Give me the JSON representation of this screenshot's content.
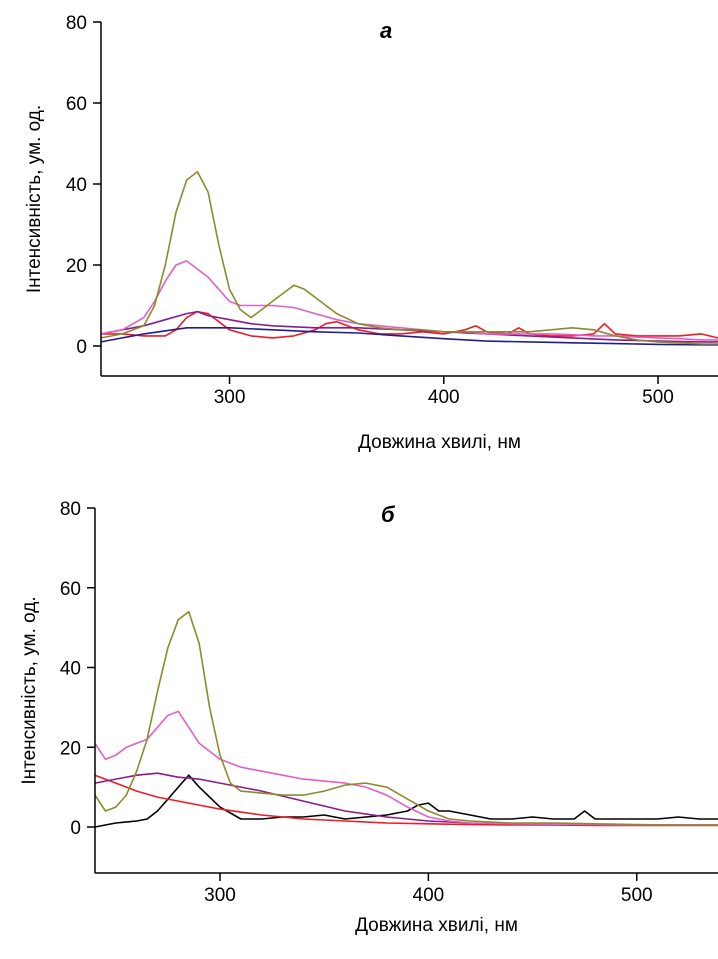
{
  "colors": {
    "olive": "#8B8B2E",
    "pink": "#E060C8",
    "purple": "#8A1C8A",
    "navy": "#1F1F8C",
    "red": "#EE1C24",
    "black": "#000000"
  },
  "chart_data": [
    {
      "type": "line",
      "panel_label": "а",
      "title": "",
      "xlabel": "Довжина хвилі, нм",
      "ylabel": "Інтенсивність, ум. од.",
      "xlim": [
        240,
        528
      ],
      "ylim": [
        -7,
        80
      ],
      "xticks": [
        300,
        400,
        500
      ],
      "yticks": [
        0,
        20,
        40,
        60,
        80
      ],
      "grid": false,
      "series": [
        {
          "color": "olive",
          "x": [
            240,
            250,
            260,
            265,
            270,
            275,
            280,
            285,
            290,
            295,
            300,
            305,
            310,
            315,
            320,
            325,
            330,
            335,
            340,
            345,
            350,
            360,
            370,
            380,
            390,
            400,
            410,
            420,
            430,
            440,
            450,
            460,
            470,
            480,
            490,
            500,
            510,
            520,
            528
          ],
          "y": [
            2,
            3,
            5,
            10,
            20,
            33,
            41,
            43,
            38,
            25,
            14,
            9,
            7,
            9,
            11,
            13,
            15,
            14,
            12,
            10,
            8,
            5.5,
            4.5,
            4,
            4,
            3.5,
            3.5,
            3.5,
            3.5,
            3.5,
            4,
            4.5,
            4,
            2.5,
            1.5,
            1,
            0.8,
            0.5,
            0.5
          ]
        },
        {
          "color": "pink",
          "x": [
            240,
            250,
            260,
            265,
            270,
            275,
            280,
            285,
            290,
            295,
            300,
            305,
            310,
            320,
            330,
            340,
            350,
            360,
            370,
            380,
            390,
            400,
            410,
            420,
            430,
            440,
            450,
            460,
            470,
            480,
            490,
            500,
            510,
            520,
            528
          ],
          "y": [
            3,
            4,
            7,
            11,
            16,
            20,
            21,
            19,
            17,
            14,
            11,
            10,
            10,
            10,
            9.5,
            8,
            6.5,
            5.5,
            5,
            4.5,
            4,
            3.5,
            3.5,
            3,
            3,
            3,
            3,
            2.8,
            2.5,
            2.5,
            2.2,
            2,
            1.8,
            1.5,
            1.5
          ]
        },
        {
          "color": "purple",
          "x": [
            240,
            250,
            260,
            270,
            280,
            285,
            290,
            300,
            310,
            320,
            340,
            360,
            380,
            400,
            420,
            440,
            460,
            480,
            500,
            520,
            528
          ],
          "y": [
            3,
            4,
            5,
            6.5,
            8,
            8.5,
            7.5,
            6.5,
            5.5,
            5,
            4.5,
            4.5,
            4,
            3.5,
            3,
            2.5,
            2,
            1.5,
            1.2,
            1,
            1
          ]
        },
        {
          "color": "navy",
          "x": [
            240,
            260,
            280,
            300,
            320,
            340,
            360,
            380,
            400,
            420,
            440,
            460,
            480,
            500,
            520,
            528
          ],
          "y": [
            1,
            3,
            4.5,
            4.5,
            4,
            3.5,
            3.2,
            2.5,
            1.8,
            1.2,
            1,
            0.8,
            0.6,
            0.4,
            0.3,
            0.3
          ]
        },
        {
          "color": "red",
          "x": [
            240,
            250,
            260,
            270,
            275,
            280,
            285,
            290,
            295,
            300,
            310,
            320,
            330,
            340,
            345,
            350,
            360,
            370,
            380,
            390,
            400,
            410,
            415,
            420,
            430,
            435,
            440,
            450,
            460,
            470,
            475,
            480,
            490,
            500,
            510,
            520,
            528
          ],
          "y": [
            3,
            3,
            2.5,
            2.5,
            4,
            7,
            8.5,
            8,
            6,
            4,
            2.5,
            2,
            2.5,
            4,
            5.5,
            6,
            4,
            3,
            3,
            3.5,
            3,
            4,
            5,
            3.5,
            3,
            4.5,
            3,
            2.5,
            2.5,
            3,
            5.5,
            3,
            2.5,
            2.5,
            2.5,
            3,
            2
          ]
        }
      ]
    },
    {
      "type": "line",
      "panel_label": "б",
      "title": "",
      "xlabel": "Довжина хвилі, нм",
      "ylabel": "Інтенсивність, ум. од.",
      "xlim": [
        240,
        539
      ],
      "ylim": [
        -12,
        80
      ],
      "xticks": [
        300,
        400,
        500
      ],
      "yticks": [
        0,
        20,
        40,
        60,
        80
      ],
      "grid": false,
      "series": [
        {
          "color": "olive",
          "x": [
            240,
            245,
            250,
            255,
            260,
            265,
            270,
            275,
            280,
            285,
            290,
            295,
            300,
            305,
            310,
            320,
            330,
            340,
            350,
            360,
            370,
            380,
            390,
            400,
            410,
            420,
            440,
            460,
            480,
            500,
            520,
            539
          ],
          "y": [
            8,
            4,
            5,
            8,
            14,
            22,
            34,
            45,
            52,
            54,
            46,
            30,
            18,
            11,
            9,
            8.5,
            8,
            8,
            9,
            10.5,
            11,
            10,
            7,
            4,
            2,
            1.5,
            1,
            1,
            0.8,
            0.6,
            0.5,
            0.5
          ]
        },
        {
          "color": "pink",
          "x": [
            240,
            245,
            250,
            255,
            260,
            265,
            270,
            275,
            280,
            285,
            290,
            300,
            310,
            320,
            330,
            340,
            350,
            360,
            370,
            380,
            390,
            400,
            410,
            420,
            440,
            460,
            480,
            500,
            520,
            539
          ],
          "y": [
            21,
            17,
            18,
            20,
            21,
            22,
            25,
            28,
            29,
            25,
            21,
            17,
            15,
            14,
            13,
            12,
            11.5,
            11,
            10,
            8,
            5,
            2.5,
            1.5,
            1,
            0.8,
            0.7,
            0.6,
            0.5,
            0.5,
            0.5
          ]
        },
        {
          "color": "purple",
          "x": [
            240,
            250,
            260,
            270,
            280,
            290,
            300,
            310,
            320,
            340,
            360,
            380,
            400,
            420,
            440,
            460,
            480,
            500,
            520,
            539
          ],
          "y": [
            11,
            12,
            13,
            13.5,
            12.5,
            12,
            11,
            10,
            9,
            6.5,
            4,
            2.5,
            1.5,
            1,
            0.8,
            0.6,
            0.5,
            0.5,
            0.5,
            0.5
          ]
        },
        {
          "color": "red",
          "x": [
            240,
            250,
            260,
            270,
            280,
            290,
            300,
            320,
            340,
            360,
            380,
            400,
            420,
            440,
            460,
            480,
            500,
            520,
            539
          ],
          "y": [
            13,
            11,
            9,
            7.5,
            6.5,
            5.5,
            4.5,
            3,
            2,
            1.5,
            1,
            0.8,
            0.6,
            0.5,
            0.5,
            0.4,
            0.4,
            0.4,
            0.4
          ]
        },
        {
          "color": "black",
          "x": [
            240,
            250,
            260,
            265,
            270,
            275,
            280,
            285,
            290,
            300,
            310,
            320,
            330,
            340,
            350,
            360,
            370,
            380,
            390,
            395,
            400,
            405,
            410,
            420,
            430,
            440,
            450,
            460,
            470,
            475,
            480,
            490,
            500,
            510,
            520,
            530,
            539
          ],
          "y": [
            0,
            1,
            1.5,
            2,
            4,
            7,
            10,
            13,
            10,
            5,
            2,
            2,
            2.5,
            2.5,
            3,
            2,
            2.5,
            3,
            4,
            5.5,
            6,
            4,
            4,
            3,
            2,
            2,
            2.5,
            2,
            2,
            4,
            2,
            2,
            2,
            2,
            2.5,
            2,
            2
          ]
        }
      ]
    }
  ]
}
